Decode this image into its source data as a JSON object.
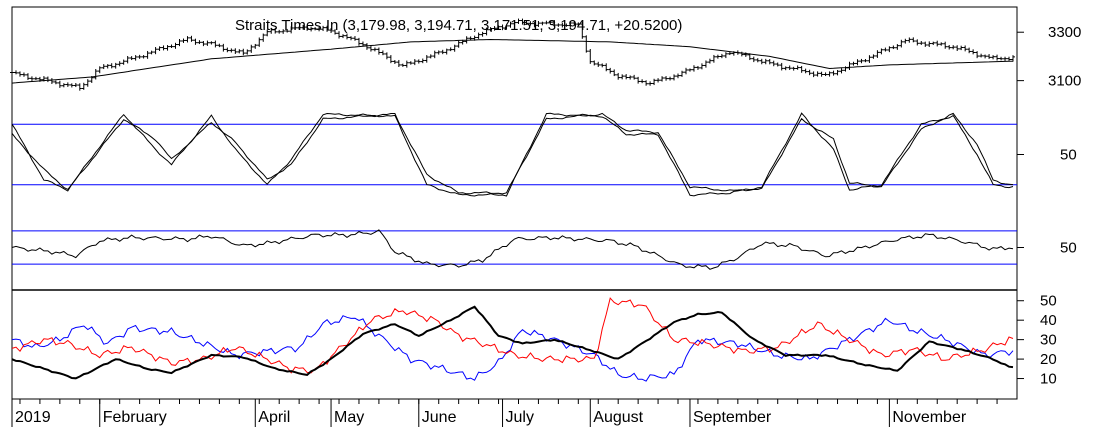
{
  "chart_data": {
    "type": "line",
    "title": "Straits Times In (3,179.98, 3,194.71, 3,171.51, 3,194.71, +20.5200)",
    "x_axis": {
      "labels": [
        "2019",
        "February",
        "April",
        "May",
        "June",
        "July",
        "August",
        "September",
        "November"
      ],
      "label_day_index": [
        0,
        22,
        61,
        80,
        102,
        123,
        145,
        170,
        220
      ],
      "days": 252
    },
    "panels": [
      {
        "name": "price",
        "type": "ohlc",
        "ylim": [
          3020,
          3400
        ],
        "ticks": [
          3300,
          3100
        ],
        "close_anchors": [
          [
            0,
            3130
          ],
          [
            10,
            3095
          ],
          [
            17,
            3070
          ],
          [
            22,
            3150
          ],
          [
            30,
            3190
          ],
          [
            44,
            3270
          ],
          [
            50,
            3250
          ],
          [
            58,
            3210
          ],
          [
            64,
            3300
          ],
          [
            74,
            3320
          ],
          [
            80,
            3305
          ],
          [
            88,
            3250
          ],
          [
            98,
            3160
          ],
          [
            108,
            3220
          ],
          [
            118,
            3300
          ],
          [
            126,
            3340
          ],
          [
            142,
            3330
          ],
          [
            145,
            3180
          ],
          [
            152,
            3120
          ],
          [
            160,
            3090
          ],
          [
            168,
            3130
          ],
          [
            180,
            3220
          ],
          [
            190,
            3170
          ],
          [
            204,
            3120
          ],
          [
            214,
            3190
          ],
          [
            224,
            3265
          ],
          [
            236,
            3240
          ],
          [
            246,
            3190
          ],
          [
            250,
            3195
          ]
        ],
        "overlay": {
          "name": "moving average",
          "anchors": [
            [
              0,
              3090
            ],
            [
              20,
              3115
            ],
            [
              50,
              3190
            ],
            [
              80,
              3230
            ],
            [
              100,
              3260
            ],
            [
              120,
              3270
            ],
            [
              150,
              3260
            ],
            [
              170,
              3240
            ],
            [
              190,
              3200
            ],
            [
              205,
              3150
            ],
            [
              220,
              3165
            ],
            [
              250,
              3180
            ]
          ]
        }
      },
      {
        "name": "stochastic",
        "type": "line",
        "ylim": [
          0,
          100
        ],
        "ticks": [
          50
        ],
        "reference_lines": [
          80,
          20
        ],
        "series": [
          {
            "anchors": [
              [
                0,
                80
              ],
              [
                8,
                25
              ],
              [
                14,
                15
              ],
              [
                28,
                90
              ],
              [
                36,
                55
              ],
              [
                40,
                40
              ],
              [
                50,
                88
              ],
              [
                56,
                55
              ],
              [
                64,
                20
              ],
              [
                70,
                45
              ],
              [
                78,
                90
              ],
              [
                96,
                88
              ],
              [
                104,
                20
              ],
              [
                112,
                10
              ],
              [
                124,
                10
              ],
              [
                134,
                90
              ],
              [
                148,
                88
              ],
              [
                154,
                70
              ],
              [
                162,
                70
              ],
              [
                170,
                10
              ],
              [
                180,
                12
              ],
              [
                188,
                18
              ],
              [
                198,
                90
              ],
              [
                206,
                55
              ],
              [
                210,
                15
              ],
              [
                218,
                20
              ],
              [
                228,
                80
              ],
              [
                236,
                88
              ],
              [
                242,
                50
              ],
              [
                246,
                20
              ],
              [
                250,
                18
              ]
            ]
          },
          {
            "anchors": [
              [
                0,
                70
              ],
              [
                8,
                35
              ],
              [
                14,
                15
              ],
              [
                28,
                85
              ],
              [
                36,
                65
              ],
              [
                40,
                45
              ],
              [
                50,
                82
              ],
              [
                56,
                62
              ],
              [
                64,
                25
              ],
              [
                70,
                40
              ],
              [
                78,
                85
              ],
              [
                96,
                90
              ],
              [
                104,
                30
              ],
              [
                112,
                12
              ],
              [
                124,
                12
              ],
              [
                134,
                85
              ],
              [
                148,
                90
              ],
              [
                154,
                74
              ],
              [
                162,
                72
              ],
              [
                170,
                18
              ],
              [
                180,
                14
              ],
              [
                188,
                16
              ],
              [
                198,
                85
              ],
              [
                206,
                65
              ],
              [
                210,
                22
              ],
              [
                218,
                18
              ],
              [
                228,
                75
              ],
              [
                236,
                90
              ],
              [
                242,
                60
              ],
              [
                246,
                25
              ],
              [
                250,
                20
              ]
            ]
          }
        ]
      },
      {
        "name": "rsi",
        "type": "line",
        "ylim": [
          0,
          100
        ],
        "ticks": [
          50
        ],
        "reference_lines": [
          70,
          30
        ],
        "series": [
          {
            "anchors": [
              [
                0,
                50
              ],
              [
                10,
                45
              ],
              [
                16,
                40
              ],
              [
                22,
                58
              ],
              [
                30,
                62
              ],
              [
                44,
                60
              ],
              [
                50,
                64
              ],
              [
                58,
                52
              ],
              [
                64,
                55
              ],
              [
                76,
                65
              ],
              [
                84,
                65
              ],
              [
                90,
                68
              ],
              [
                92,
                70
              ],
              [
                96,
                45
              ],
              [
                104,
                30
              ],
              [
                112,
                28
              ],
              [
                118,
                35
              ],
              [
                126,
                60
              ],
              [
                136,
                62
              ],
              [
                150,
                58
              ],
              [
                156,
                52
              ],
              [
                162,
                40
              ],
              [
                168,
                28
              ],
              [
                176,
                26
              ],
              [
                182,
                38
              ],
              [
                188,
                55
              ],
              [
                196,
                52
              ],
              [
                204,
                40
              ],
              [
                212,
                48
              ],
              [
                222,
                60
              ],
              [
                230,
                65
              ],
              [
                238,
                58
              ],
              [
                246,
                48
              ],
              [
                250,
                50
              ]
            ]
          }
        ]
      },
      {
        "name": "dmi",
        "type": "line",
        "ylim": [
          0,
          55
        ],
        "ticks": [
          50,
          40,
          30,
          20,
          10
        ],
        "series": [
          {
            "color": "#000000",
            "width": 2,
            "anchors": [
              [
                0,
                20
              ],
              [
                8,
                15
              ],
              [
                16,
                10
              ],
              [
                26,
                20
              ],
              [
                34,
                15
              ],
              [
                40,
                13
              ],
              [
                50,
                22
              ],
              [
                58,
                21
              ],
              [
                66,
                15
              ],
              [
                74,
                12
              ],
              [
                80,
                20
              ],
              [
                88,
                33
              ],
              [
                96,
                38
              ],
              [
                102,
                32
              ],
              [
                110,
                40
              ],
              [
                116,
                47
              ],
              [
                122,
                32
              ],
              [
                128,
                28
              ],
              [
                136,
                30
              ],
              [
                146,
                24
              ],
              [
                152,
                20
              ],
              [
                158,
                28
              ],
              [
                166,
                39
              ],
              [
                172,
                43
              ],
              [
                178,
                44
              ],
              [
                186,
                30
              ],
              [
                194,
                22
              ],
              [
                204,
                22
              ],
              [
                214,
                17
              ],
              [
                222,
                14
              ],
              [
                230,
                29
              ],
              [
                238,
                25
              ],
              [
                246,
                20
              ],
              [
                250,
                16
              ]
            ]
          },
          {
            "color": "#ff0000",
            "width": 1,
            "anchors": [
              [
                0,
                25
              ],
              [
                8,
                30
              ],
              [
                14,
                28
              ],
              [
                22,
                22
              ],
              [
                30,
                26
              ],
              [
                40,
                18
              ],
              [
                48,
                20
              ],
              [
                56,
                26
              ],
              [
                64,
                20
              ],
              [
                70,
                15
              ],
              [
                76,
                14
              ],
              [
                82,
                25
              ],
              [
                90,
                40
              ],
              [
                98,
                45
              ],
              [
                106,
                40
              ],
              [
                112,
                32
              ],
              [
                118,
                28
              ],
              [
                126,
                22
              ],
              [
                134,
                20
              ],
              [
                146,
                20
              ],
              [
                150,
                50
              ],
              [
                158,
                48
              ],
              [
                166,
                30
              ],
              [
                174,
                28
              ],
              [
                184,
                24
              ],
              [
                192,
                26
              ],
              [
                202,
                38
              ],
              [
                210,
                30
              ],
              [
                218,
                22
              ],
              [
                226,
                25
              ],
              [
                234,
                20
              ],
              [
                244,
                25
              ],
              [
                250,
                30
              ]
            ]
          },
          {
            "color": "#0000ff",
            "width": 1,
            "anchors": [
              [
                0,
                30
              ],
              [
                6,
                26
              ],
              [
                12,
                30
              ],
              [
                18,
                38
              ],
              [
                24,
                28
              ],
              [
                30,
                36
              ],
              [
                40,
                34
              ],
              [
                48,
                28
              ],
              [
                56,
                22
              ],
              [
                64,
                24
              ],
              [
                72,
                26
              ],
              [
                78,
                38
              ],
              [
                86,
                42
              ],
              [
                92,
                32
              ],
              [
                100,
                20
              ],
              [
                108,
                15
              ],
              [
                116,
                10
              ],
              [
                122,
                18
              ],
              [
                128,
                35
              ],
              [
                136,
                30
              ],
              [
                146,
                22
              ],
              [
                152,
                12
              ],
              [
                158,
                10
              ],
              [
                166,
                12
              ],
              [
                172,
                30
              ],
              [
                182,
                28
              ],
              [
                192,
                22
              ],
              [
                200,
                20
              ],
              [
                210,
                30
              ],
              [
                220,
                40
              ],
              [
                226,
                35
              ],
              [
                234,
                30
              ],
              [
                244,
                22
              ],
              [
                250,
                24
              ]
            ]
          }
        ]
      }
    ]
  }
}
